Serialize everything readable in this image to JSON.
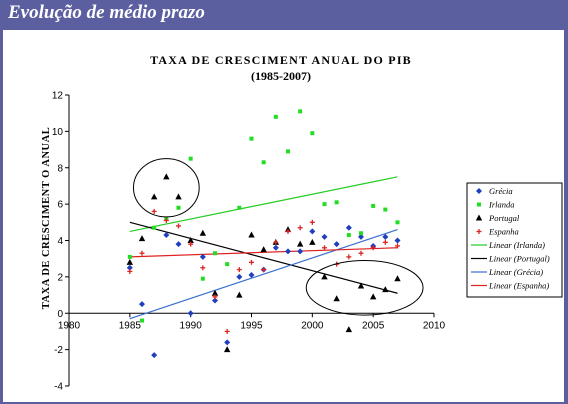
{
  "header": {
    "title": "Evolução de médio prazo"
  },
  "chart_data": {
    "type": "scatter",
    "title": "TAXA DE CRESCIMENT ANUAL DO PIB",
    "subtitle": "(1985-2007)",
    "xlabel": "",
    "ylabel": "TAXA DE CRESCIMENT O ANUAL",
    "xlim": [
      1980,
      2010
    ],
    "ylim": [
      -4,
      12
    ],
    "x_ticks": [
      "1980",
      "1985",
      "1990",
      "1995",
      "2000",
      "2005",
      "2010"
    ],
    "y_ticks": [
      "-4",
      "-2",
      "0",
      "2",
      "4",
      "6",
      "8",
      "10",
      "12"
    ],
    "legend_position": "right",
    "series": [
      {
        "name": "Grécia",
        "color": "#1f3fbf",
        "marker": "diamond",
        "points": [
          [
            1985,
            2.5
          ],
          [
            1986,
            0.5
          ],
          [
            1987,
            -2.3
          ],
          [
            1988,
            4.3
          ],
          [
            1989,
            3.8
          ],
          [
            1990,
            0.0
          ],
          [
            1991,
            3.1
          ],
          [
            1992,
            0.7
          ],
          [
            1993,
            -1.6
          ],
          [
            1994,
            2.0
          ],
          [
            1995,
            2.1
          ],
          [
            1996,
            2.4
          ],
          [
            1997,
            3.6
          ],
          [
            1998,
            3.4
          ],
          [
            1999,
            3.4
          ],
          [
            2000,
            4.5
          ],
          [
            2001,
            4.2
          ],
          [
            2002,
            3.8
          ],
          [
            2003,
            4.7
          ],
          [
            2004,
            4.2
          ],
          [
            2005,
            3.7
          ],
          [
            2006,
            4.2
          ],
          [
            2007,
            4.0
          ]
        ]
      },
      {
        "name": "Irlanda",
        "color": "#22dd22",
        "marker": "square",
        "points": [
          [
            1985,
            3.1
          ],
          [
            1986,
            -0.4
          ],
          [
            1987,
            4.7
          ],
          [
            1988,
            5.2
          ],
          [
            1989,
            5.8
          ],
          [
            1990,
            8.5
          ],
          [
            1991,
            1.9
          ],
          [
            1992,
            3.3
          ],
          [
            1993,
            2.7
          ],
          [
            1994,
            5.8
          ],
          [
            1995,
            9.6
          ],
          [
            1996,
            8.3
          ],
          [
            1997,
            10.8
          ],
          [
            1998,
            8.9
          ],
          [
            1999,
            11.1
          ],
          [
            2000,
            9.9
          ],
          [
            2001,
            6.0
          ],
          [
            2002,
            6.1
          ],
          [
            2003,
            4.3
          ],
          [
            2004,
            4.4
          ],
          [
            2005,
            5.9
          ],
          [
            2006,
            5.7
          ],
          [
            2007,
            5.0
          ]
        ]
      },
      {
        "name": "Portugal",
        "color": "#000000",
        "marker": "triangle",
        "points": [
          [
            1985,
            2.8
          ],
          [
            1986,
            4.1
          ],
          [
            1987,
            6.4
          ],
          [
            1988,
            7.5
          ],
          [
            1989,
            6.4
          ],
          [
            1990,
            4.0
          ],
          [
            1991,
            4.4
          ],
          [
            1992,
            1.1
          ],
          [
            1993,
            -2.0
          ],
          [
            1994,
            1.0
          ],
          [
            1995,
            4.3
          ],
          [
            1996,
            3.5
          ],
          [
            1997,
            3.9
          ],
          [
            1998,
            4.6
          ],
          [
            1999,
            3.8
          ],
          [
            2000,
            3.9
          ],
          [
            2001,
            2.0
          ],
          [
            2002,
            0.8
          ],
          [
            2003,
            -0.9
          ],
          [
            2004,
            1.5
          ],
          [
            2005,
            0.9
          ],
          [
            2006,
            1.3
          ],
          [
            2007,
            1.9
          ]
        ]
      },
      {
        "name": "Espanha",
        "color": "#dd2222",
        "marker": "star",
        "points": [
          [
            1985,
            2.3
          ],
          [
            1986,
            3.3
          ],
          [
            1987,
            5.6
          ],
          [
            1988,
            5.1
          ],
          [
            1989,
            4.8
          ],
          [
            1990,
            3.8
          ],
          [
            1991,
            2.5
          ],
          [
            1992,
            0.9
          ],
          [
            1993,
            -1.0
          ],
          [
            1994,
            2.4
          ],
          [
            1995,
            2.8
          ],
          [
            1996,
            2.4
          ],
          [
            1997,
            3.9
          ],
          [
            1998,
            4.5
          ],
          [
            1999,
            4.7
          ],
          [
            2000,
            5.0
          ],
          [
            2001,
            3.6
          ],
          [
            2002,
            2.7
          ],
          [
            2003,
            3.1
          ],
          [
            2004,
            3.3
          ],
          [
            2005,
            3.6
          ],
          [
            2006,
            3.9
          ],
          [
            2007,
            3.7
          ]
        ]
      }
    ],
    "trendlines": [
      {
        "name": "Linear (Irlanda)",
        "color": "#22cc22",
        "from": [
          1985,
          4.5
        ],
        "to": [
          2007,
          7.5
        ]
      },
      {
        "name": "Linear (Portugal)",
        "color": "#000000",
        "from": [
          1985,
          5.0
        ],
        "to": [
          2007,
          1.1
        ]
      },
      {
        "name": "Linear (Grécia)",
        "color": "#3a6fd0",
        "from": [
          1985,
          -0.3
        ],
        "to": [
          2007,
          4.6
        ]
      },
      {
        "name": "Linear (Espanha)",
        "color": "#dd2222",
        "from": [
          1985,
          3.1
        ],
        "to": [
          2007,
          3.6
        ]
      }
    ],
    "highlights": [
      {
        "label": "portugal-1987-1989",
        "cx": 1988,
        "cy": 6.9,
        "rx": 2.7,
        "ry": 1.6
      },
      {
        "label": "portugal-2001-2007",
        "cx": 2004.3,
        "cy": 1.4,
        "rx": 4.8,
        "ry": 1.5
      }
    ]
  }
}
